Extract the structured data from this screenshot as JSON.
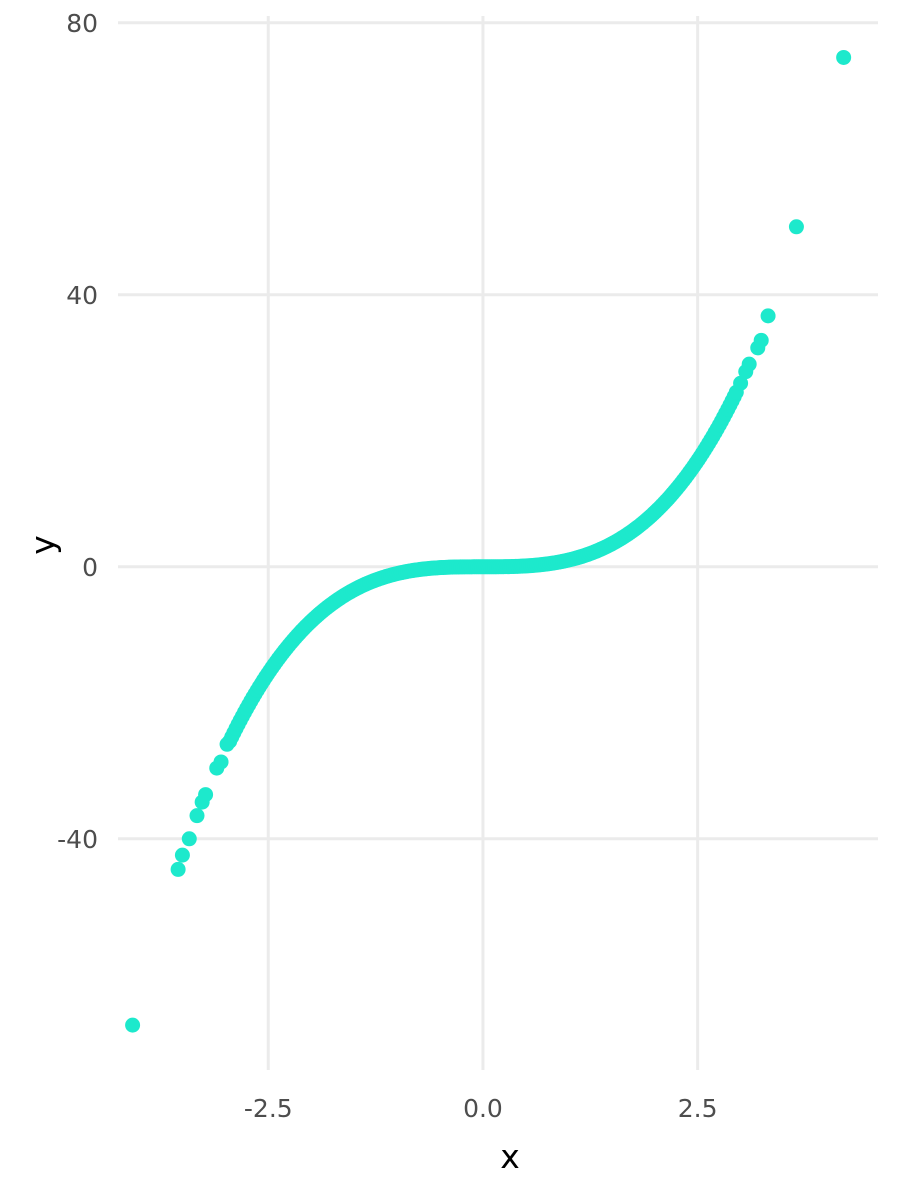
{
  "chart_data": {
    "type": "scatter",
    "title": "",
    "xlabel": "x",
    "ylabel": "y",
    "xlim": [
      -4.25,
      4.6
    ],
    "ylim": [
      -74,
      81
    ],
    "x_ticks": [
      {
        "value": -2.5,
        "label": "-2.5"
      },
      {
        "value": 0.0,
        "label": "0.0"
      },
      {
        "value": 2.5,
        "label": "2.5"
      }
    ],
    "y_ticks": [
      {
        "value": -40,
        "label": "-40"
      },
      {
        "value": 0,
        "label": "0"
      },
      {
        "value": 40,
        "label": "40"
      },
      {
        "value": 80,
        "label": "80"
      }
    ],
    "grid": true,
    "legend": "none",
    "point_color": "#1de9cc",
    "dense_curve": {
      "formula": "y = x^3",
      "x_range": [
        -2.95,
        2.95
      ],
      "count": 240
    },
    "points": [
      {
        "x": -4.08,
        "y": -67.4
      },
      {
        "x": -3.55,
        "y": -44.5
      },
      {
        "x": -3.5,
        "y": -42.4
      },
      {
        "x": -3.42,
        "y": -40.0
      },
      {
        "x": -3.33,
        "y": -36.6
      },
      {
        "x": -3.27,
        "y": -34.6
      },
      {
        "x": -3.23,
        "y": -33.5
      },
      {
        "x": -3.1,
        "y": -29.6
      },
      {
        "x": -3.05,
        "y": -28.7
      },
      {
        "x": -2.98,
        "y": -26.1
      },
      {
        "x": 3.0,
        "y": 27.0
      },
      {
        "x": 3.06,
        "y": 28.7
      },
      {
        "x": 3.1,
        "y": 29.8
      },
      {
        "x": 3.2,
        "y": 32.2
      },
      {
        "x": 3.24,
        "y": 33.3
      },
      {
        "x": 3.32,
        "y": 36.9
      },
      {
        "x": 3.65,
        "y": 50.0
      },
      {
        "x": 4.2,
        "y": 74.9
      }
    ]
  }
}
